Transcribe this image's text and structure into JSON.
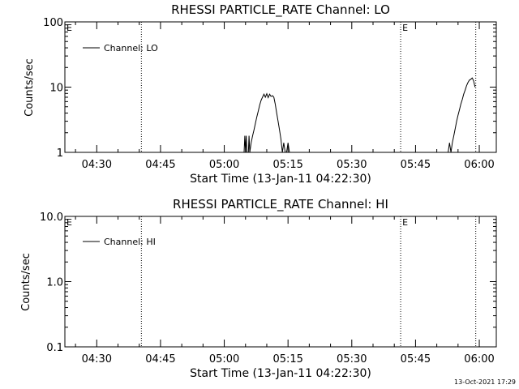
{
  "footer_timestamp": "13-Oct-2021 17:29",
  "chart_data": [
    {
      "type": "line",
      "title": "RHESSI PARTICLE_RATE Channel: LO",
      "xlabel": "Start Time (13-Jan-11 04:22:30)",
      "ylabel": "Counts/sec",
      "y_scale": "log",
      "ylim": [
        1,
        100
      ],
      "y_ticks": [
        "1",
        "10",
        "100"
      ],
      "xlim": [
        "04:22:30",
        "06:04:00"
      ],
      "x_ticks": [
        "04:30",
        "04:45",
        "05:00",
        "05:15",
        "05:30",
        "05:45",
        "06:00"
      ],
      "legend": "top-left",
      "series": [
        {
          "name": "Channel: LO",
          "points": [
            [
              "05:04:40",
              1.0
            ],
            [
              "05:04:50",
              1.8
            ],
            [
              "05:05:00",
              1.0
            ],
            [
              "05:05:10",
              1.8
            ],
            [
              "05:05:20",
              1.0
            ],
            [
              "05:05:40",
              1.0
            ],
            [
              "05:05:50",
              1.8
            ],
            [
              "05:06:00",
              1.0
            ],
            [
              "05:06:20",
              1.4
            ],
            [
              "05:06:40",
              1.8
            ],
            [
              "05:07:00",
              2.2
            ],
            [
              "05:07:20",
              2.8
            ],
            [
              "05:07:40",
              3.5
            ],
            [
              "05:08:00",
              4.3
            ],
            [
              "05:08:20",
              5.3
            ],
            [
              "05:08:40",
              6.3
            ],
            [
              "05:09:00",
              7.0
            ],
            [
              "05:09:20",
              7.8
            ],
            [
              "05:09:40",
              7.0
            ],
            [
              "05:10:00",
              7.9
            ],
            [
              "05:10:20",
              6.9
            ],
            [
              "05:10:40",
              7.8
            ],
            [
              "05:11:00",
              7.2
            ],
            [
              "05:11:20",
              7.4
            ],
            [
              "05:11:40",
              7.0
            ],
            [
              "05:12:00",
              5.5
            ],
            [
              "05:12:20",
              4.0
            ],
            [
              "05:12:40",
              3.0
            ],
            [
              "05:13:00",
              2.2
            ],
            [
              "05:13:20",
              1.6
            ],
            [
              "05:13:40",
              1.0
            ],
            [
              "05:14:00",
              1.4
            ],
            [
              "05:14:20",
              1.0
            ],
            [
              "05:14:40",
              1.0
            ],
            [
              "05:15:00",
              1.4
            ],
            [
              "05:15:20",
              1.0
            ],
            [
              "05:52:40",
              1.0
            ],
            [
              "05:53:00",
              1.4
            ],
            [
              "05:53:20",
              1.0
            ],
            [
              "05:53:40",
              1.4
            ],
            [
              "05:54:00",
              1.8
            ],
            [
              "05:54:20",
              2.3
            ],
            [
              "05:54:40",
              3.0
            ],
            [
              "05:55:00",
              3.7
            ],
            [
              "05:55:20",
              4.5
            ],
            [
              "05:55:40",
              5.5
            ],
            [
              "05:56:00",
              6.5
            ],
            [
              "05:56:20",
              7.8
            ],
            [
              "05:56:40",
              9.0
            ],
            [
              "05:57:00",
              10.5
            ],
            [
              "05:57:20",
              11.8
            ],
            [
              "05:57:40",
              12.8
            ],
            [
              "05:58:00",
              13.2
            ],
            [
              "05:58:20",
              13.8
            ],
            [
              "05:58:40",
              12.5
            ],
            [
              "05:59:00",
              10.0
            ]
          ]
        }
      ],
      "markers": [
        {
          "time": "04:40:30",
          "label": ""
        },
        {
          "time": "05:41:30",
          "label": "E"
        },
        {
          "time": "05:59:10",
          "label": ""
        }
      ],
      "corner_marker_label": "E"
    },
    {
      "type": "line",
      "title": "RHESSI PARTICLE_RATE Channel: HI",
      "xlabel": "Start Time (13-Jan-11 04:22:30)",
      "ylabel": "Counts/sec",
      "y_scale": "log",
      "ylim": [
        0.1,
        10
      ],
      "y_ticks": [
        "0.1",
        "1.0",
        "10.0"
      ],
      "xlim": [
        "04:22:30",
        "06:04:00"
      ],
      "x_ticks": [
        "04:30",
        "04:45",
        "05:00",
        "05:15",
        "05:30",
        "05:45",
        "06:00"
      ],
      "legend": "top-left",
      "series": [
        {
          "name": "Channel: HI",
          "points": []
        }
      ],
      "markers": [
        {
          "time": "04:40:30",
          "label": ""
        },
        {
          "time": "05:41:30",
          "label": "E"
        },
        {
          "time": "05:59:10",
          "label": ""
        }
      ],
      "corner_marker_label": "E"
    }
  ]
}
